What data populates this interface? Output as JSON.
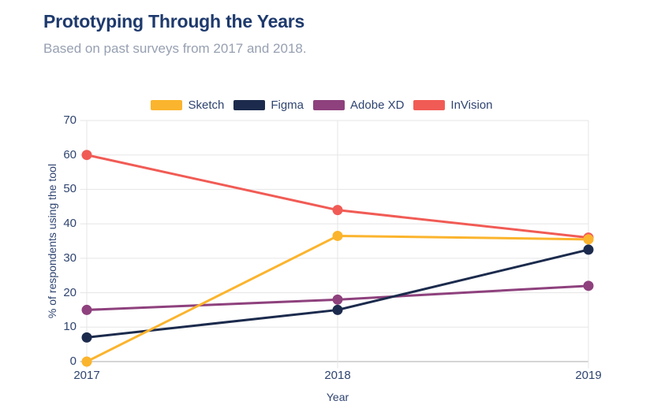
{
  "header": {
    "title": "Prototyping Through the Years",
    "subtitle": "Based on past surveys from 2017 and 2018."
  },
  "chart_data": {
    "type": "line",
    "categories": [
      "2017",
      "2018",
      "2019"
    ],
    "series": [
      {
        "name": "Sketch",
        "color": "#FBB42D",
        "values": [
          0,
          36.5,
          35.5
        ]
      },
      {
        "name": "Figma",
        "color": "#1C2B4D",
        "values": [
          7,
          15,
          32.5
        ]
      },
      {
        "name": "Adobe XD",
        "color": "#8E417D",
        "values": [
          15,
          18,
          22
        ]
      },
      {
        "name": "InVision",
        "color": "#F15B55",
        "values": [
          60,
          44,
          36
        ]
      }
    ],
    "xlabel": "Year",
    "ylabel": "% of respondents using the tool",
    "ylim": [
      0,
      70
    ],
    "yticks": [
      0,
      10,
      20,
      30,
      40,
      50,
      60,
      70
    ],
    "grid": true,
    "legend_position": "top"
  },
  "colors": {
    "title_text": "#1E3A6D",
    "subtitle_text": "#97A0B1",
    "tick_text": "#2F4470",
    "gridline": "#E5E5E5",
    "axis_line": "#C7C7C7"
  }
}
